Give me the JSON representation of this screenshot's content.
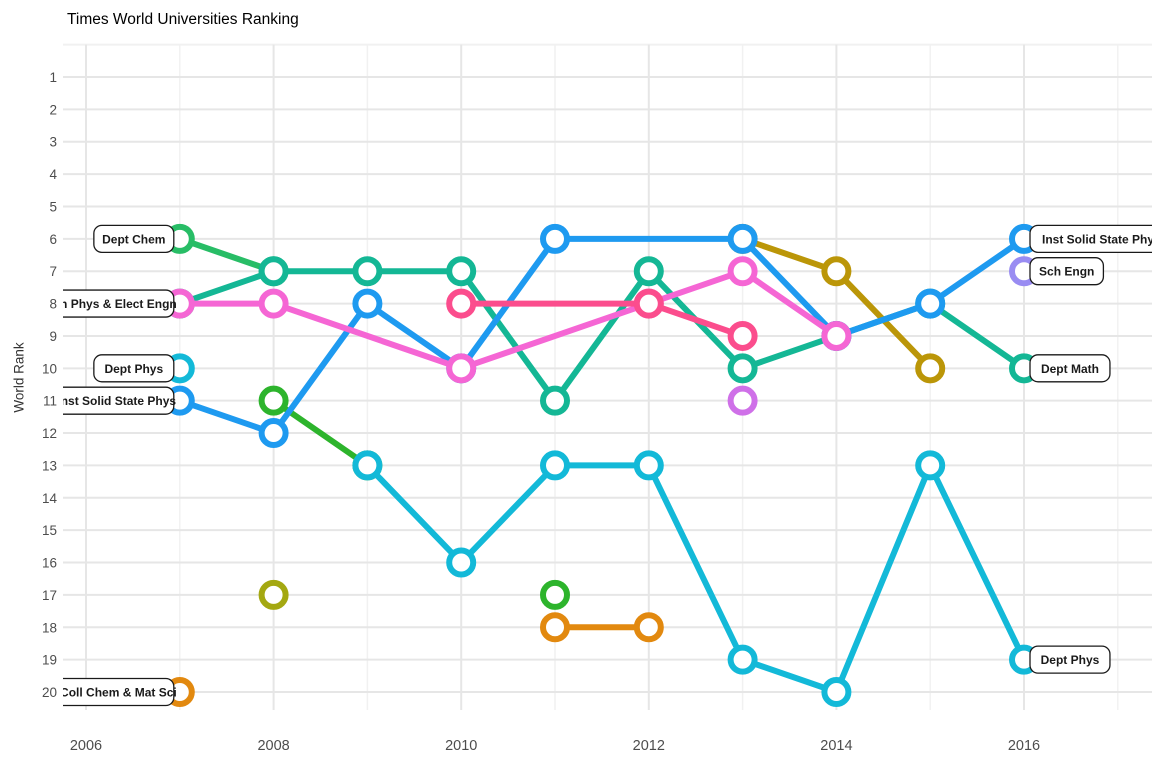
{
  "title": "Times World Universities Ranking",
  "y_axis": {
    "label": "World Rank",
    "ticks": [
      1,
      2,
      3,
      4,
      5,
      6,
      7,
      8,
      9,
      10,
      11,
      12,
      13,
      14,
      15,
      16,
      17,
      18,
      19,
      20
    ]
  },
  "x_axis": {
    "ticks": [
      2006,
      2008,
      2010,
      2012,
      2014,
      2016
    ],
    "minor_years": [
      2007,
      2009,
      2011,
      2013,
      2015,
      2017
    ]
  },
  "chart_data": {
    "type": "line",
    "title": "Times World Universities Ranking",
    "xlabel": "",
    "ylabel": "World Rank",
    "x_range": [
      2006,
      2017
    ],
    "y_range": [
      1,
      20
    ],
    "y_inverted": true,
    "grid": "on",
    "marker_style": "open-circle",
    "series": [
      {
        "id": "olive-unlabeled",
        "color": "#a4a811",
        "lines": [
          [
            [
              2008,
              17
            ]
          ]
        ]
      },
      {
        "id": "orange-coll-chem-mat-sci",
        "label_left": "Coll Chem & Mat Sci",
        "color": "#e2890f",
        "lines": [
          [
            [
              2007,
              20
            ]
          ],
          [
            [
              2011,
              18
            ],
            [
              2012,
              18
            ]
          ]
        ]
      },
      {
        "id": "bright-green-unlabeled",
        "color": "#2db42c",
        "lines": [
          [
            [
              2008,
              11
            ],
            [
              2009,
              13
            ]
          ],
          [
            [
              2011,
              17
            ]
          ]
        ]
      },
      {
        "id": "purple-sch-engn",
        "label_right": "Sch Engn",
        "color": "#998cf2",
        "lines": [
          [
            [
              2016,
              7
            ]
          ]
        ]
      },
      {
        "id": "orchid-unlabeled",
        "color": "#cf70e8",
        "lines": [
          [
            [
              2013,
              11
            ]
          ]
        ]
      },
      {
        "id": "green-dept-chem",
        "label_left": "Dept Chem",
        "color": "#28bd66",
        "lines": [
          [
            [
              2007,
              6
            ],
            [
              2008,
              7
            ]
          ]
        ]
      },
      {
        "id": "darkyellow-unlabeled",
        "color": "#bb9608",
        "lines": [
          [
            [
              2013,
              6
            ],
            [
              2014,
              7
            ],
            [
              2015,
              10
            ]
          ]
        ]
      },
      {
        "id": "cyan-dept-phys",
        "label_left": "Dept Phys",
        "label_right": "Dept Phys",
        "color": "#13b9d8",
        "lines": [
          [
            [
              2007,
              10
            ]
          ],
          [
            [
              2009,
              13
            ],
            [
              2010,
              16
            ],
            [
              2011,
              13
            ],
            [
              2012,
              13
            ],
            [
              2013,
              19
            ],
            [
              2014,
              20
            ],
            [
              2015,
              13
            ],
            [
              2016,
              19
            ]
          ]
        ]
      },
      {
        "id": "teal-dept-math",
        "label_right": "Dept Math",
        "color": "#14b795",
        "lines": [
          [
            [
              2007,
              8
            ],
            [
              2008,
              7
            ],
            [
              2009,
              7
            ],
            [
              2010,
              7
            ],
            [
              2011,
              11
            ],
            [
              2012,
              7
            ],
            [
              2013,
              10
            ],
            [
              2014,
              9
            ],
            [
              2015,
              8
            ],
            [
              2016,
              10
            ]
          ]
        ]
      },
      {
        "id": "blue-inst-solid-state-phys",
        "label_left": "nst Solid State Phys",
        "label_right": "Inst Solid State Phy",
        "color": "#1e9af0",
        "lines": [
          [
            [
              2007,
              11
            ],
            [
              2008,
              12
            ],
            [
              2009,
              8
            ],
            [
              2010,
              10
            ],
            [
              2011,
              6
            ],
            [
              2013,
              6
            ],
            [
              2014,
              9
            ],
            [
              2015,
              8
            ],
            [
              2016,
              6
            ]
          ]
        ]
      },
      {
        "id": "violet-sch-phys-elect-engn",
        "label_left": "h Phys & Elect Engn",
        "color": "#f566d4",
        "lines": [
          [
            [
              2007,
              8
            ],
            [
              2008,
              8
            ],
            [
              2010,
              10
            ],
            [
              2012,
              8
            ],
            [
              2013,
              7
            ],
            [
              2014,
              9
            ]
          ]
        ]
      },
      {
        "id": "darkpink-unlabeled",
        "color": "#fb4d8d",
        "lines": [
          [
            [
              2010,
              8
            ],
            [
              2012,
              8
            ],
            [
              2013,
              9
            ]
          ]
        ]
      }
    ],
    "labels": [
      {
        "text": "Dept Chem",
        "year": 2007,
        "rank": 6,
        "side": "left"
      },
      {
        "text": "h Phys & Elect Engn",
        "year": 2007,
        "rank": 8,
        "side": "left",
        "clipped": true
      },
      {
        "text": "Dept Phys",
        "year": 2007,
        "rank": 10,
        "side": "left"
      },
      {
        "text": "nst Solid State Phys",
        "year": 2007,
        "rank": 11,
        "side": "left",
        "clipped": true
      },
      {
        "text": "Coll Chem & Mat Sci",
        "year": 2007,
        "rank": 20,
        "side": "left",
        "clipped": true
      },
      {
        "text": "Inst Solid State Phy",
        "year": 2016,
        "rank": 6,
        "side": "right",
        "clipped": true
      },
      {
        "text": "Sch Engn",
        "year": 2016,
        "rank": 7,
        "side": "right"
      },
      {
        "text": "Dept Math",
        "year": 2016,
        "rank": 10,
        "side": "right"
      },
      {
        "text": "Dept Phys",
        "year": 2016,
        "rank": 19,
        "side": "right"
      }
    ],
    "style": {
      "grid_major_color": "#e6e6e6",
      "grid_minor_color": "#f1f1f1",
      "tick_color": "#4d4d4d",
      "label_box_border": "#1a1a1a",
      "label_box_fill": "#ffffff"
    }
  }
}
